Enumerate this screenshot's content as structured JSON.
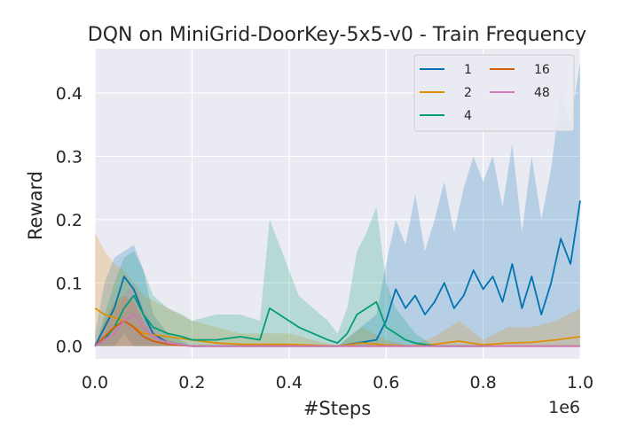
{
  "chart_data": {
    "type": "line",
    "title": "DQN on MiniGrid-DoorKey-5x5-v0 - Train Frequency",
    "xlabel": "#Steps",
    "ylabel": "Reward",
    "x_offset_label": "1e6",
    "xlim": [
      0.0,
      1.0
    ],
    "ylim": [
      -0.02,
      0.47
    ],
    "xticks": [
      0.0,
      0.2,
      0.4,
      0.6,
      0.8,
      1.0
    ],
    "xtick_labels": [
      "0.0",
      "0.2",
      "0.4",
      "0.6",
      "0.8",
      "1.0"
    ],
    "yticks": [
      0.0,
      0.1,
      0.2,
      0.3,
      0.4
    ],
    "ytick_labels": [
      "0.0",
      "0.1",
      "0.2",
      "0.3",
      "0.4"
    ],
    "grid": true,
    "legend_position": "top-right",
    "series": [
      {
        "name": "1",
        "color": "#0173b2",
        "x": [
          0.0,
          0.02,
          0.04,
          0.06,
          0.08,
          0.1,
          0.12,
          0.15,
          0.2,
          0.3,
          0.4,
          0.5,
          0.58,
          0.6,
          0.62,
          0.64,
          0.66,
          0.68,
          0.7,
          0.72,
          0.74,
          0.76,
          0.78,
          0.8,
          0.82,
          0.84,
          0.86,
          0.88,
          0.9,
          0.92,
          0.94,
          0.96,
          0.98,
          1.0
        ],
        "y": [
          0.0,
          0.03,
          0.06,
          0.11,
          0.09,
          0.05,
          0.02,
          0.005,
          0.0,
          0.0,
          0.0,
          0.0,
          0.01,
          0.04,
          0.09,
          0.06,
          0.08,
          0.05,
          0.07,
          0.1,
          0.06,
          0.08,
          0.12,
          0.09,
          0.11,
          0.07,
          0.13,
          0.06,
          0.11,
          0.05,
          0.1,
          0.17,
          0.13,
          0.23
        ],
        "lower": [
          0.0,
          0.0,
          0.0,
          0.02,
          0.0,
          0.0,
          0.0,
          0.0,
          0.0,
          0.0,
          0.0,
          0.0,
          0.0,
          0.0,
          0.0,
          0.0,
          0.0,
          0.0,
          0.0,
          0.0,
          0.0,
          0.0,
          0.0,
          0.0,
          0.0,
          0.0,
          0.0,
          0.0,
          0.0,
          0.0,
          0.0,
          0.0,
          0.0,
          0.0
        ],
        "upper": [
          0.02,
          0.1,
          0.14,
          0.15,
          0.16,
          0.12,
          0.05,
          0.02,
          0.0,
          0.0,
          0.0,
          0.0,
          0.05,
          0.13,
          0.2,
          0.16,
          0.24,
          0.15,
          0.2,
          0.26,
          0.18,
          0.25,
          0.3,
          0.26,
          0.3,
          0.22,
          0.32,
          0.18,
          0.3,
          0.2,
          0.28,
          0.4,
          0.35,
          0.45
        ]
      },
      {
        "name": "2",
        "color": "#de8f05",
        "x": [
          0.0,
          0.02,
          0.04,
          0.06,
          0.08,
          0.1,
          0.15,
          0.2,
          0.25,
          0.3,
          0.4,
          0.5,
          0.55,
          0.6,
          0.65,
          0.7,
          0.75,
          0.8,
          0.85,
          0.9,
          0.95,
          1.0
        ],
        "y": [
          0.06,
          0.05,
          0.045,
          0.04,
          0.03,
          0.02,
          0.015,
          0.01,
          0.005,
          0.003,
          0.003,
          0.0,
          0.005,
          0.002,
          0.0,
          0.003,
          0.008,
          0.002,
          0.005,
          0.006,
          0.01,
          0.015
        ],
        "lower": [
          0.0,
          0.0,
          0.0,
          0.0,
          0.0,
          0.0,
          0.0,
          0.0,
          0.0,
          0.0,
          0.0,
          0.0,
          0.0,
          0.0,
          0.0,
          0.0,
          0.0,
          0.0,
          0.0,
          0.0,
          0.0,
          0.0
        ],
        "upper": [
          0.18,
          0.15,
          0.13,
          0.12,
          0.1,
          0.08,
          0.06,
          0.04,
          0.03,
          0.02,
          0.02,
          0.0,
          0.03,
          0.01,
          0.0,
          0.015,
          0.04,
          0.01,
          0.03,
          0.03,
          0.04,
          0.06
        ]
      },
      {
        "name": "4",
        "color": "#029e73",
        "x": [
          0.0,
          0.02,
          0.04,
          0.06,
          0.08,
          0.1,
          0.12,
          0.15,
          0.18,
          0.2,
          0.25,
          0.3,
          0.34,
          0.36,
          0.38,
          0.4,
          0.42,
          0.45,
          0.48,
          0.5,
          0.52,
          0.54,
          0.56,
          0.58,
          0.6,
          0.62,
          0.64,
          0.66,
          0.7,
          0.75,
          0.8
        ],
        "y": [
          0.0,
          0.01,
          0.03,
          0.06,
          0.08,
          0.05,
          0.03,
          0.02,
          0.015,
          0.01,
          0.01,
          0.015,
          0.01,
          0.06,
          0.05,
          0.04,
          0.03,
          0.02,
          0.01,
          0.005,
          0.02,
          0.05,
          0.06,
          0.07,
          0.03,
          0.02,
          0.01,
          0.005,
          0.0,
          0.0,
          0.0
        ],
        "lower": [
          0.0,
          0.0,
          0.0,
          0.0,
          0.0,
          0.0,
          0.0,
          0.0,
          0.0,
          0.0,
          0.0,
          0.0,
          0.0,
          0.0,
          0.0,
          0.0,
          0.0,
          0.0,
          0.0,
          0.0,
          0.0,
          0.0,
          0.0,
          0.0,
          0.0,
          0.0,
          0.0,
          0.0,
          0.0,
          0.0,
          0.0
        ],
        "upper": [
          0.0,
          0.05,
          0.1,
          0.14,
          0.15,
          0.12,
          0.08,
          0.06,
          0.05,
          0.04,
          0.05,
          0.05,
          0.04,
          0.2,
          0.16,
          0.12,
          0.08,
          0.06,
          0.04,
          0.02,
          0.06,
          0.15,
          0.18,
          0.22,
          0.1,
          0.06,
          0.04,
          0.02,
          0.0,
          0.0,
          0.0
        ]
      },
      {
        "name": "16",
        "color": "#d55e00",
        "x": [
          0.0,
          0.02,
          0.04,
          0.06,
          0.08,
          0.1,
          0.12,
          0.15,
          0.2,
          0.3,
          0.5,
          0.7,
          1.0
        ],
        "y": [
          0.0,
          0.015,
          0.03,
          0.04,
          0.03,
          0.015,
          0.008,
          0.003,
          0.0,
          0.0,
          0.0,
          0.0,
          0.0
        ],
        "lower": [
          0.0,
          0.0,
          0.0,
          0.0,
          0.0,
          0.0,
          0.0,
          0.0,
          0.0,
          0.0,
          0.0,
          0.0,
          0.0
        ],
        "upper": [
          0.0,
          0.04,
          0.07,
          0.08,
          0.07,
          0.04,
          0.02,
          0.01,
          0.0,
          0.0,
          0.0,
          0.0,
          0.0
        ]
      },
      {
        "name": "48",
        "color": "#cc78bc",
        "x": [
          0.0,
          0.02,
          0.04,
          0.06,
          0.08,
          0.1,
          0.12,
          0.15,
          0.2,
          0.3,
          0.5,
          0.7,
          1.0
        ],
        "y": [
          0.0,
          0.01,
          0.02,
          0.04,
          0.05,
          0.03,
          0.015,
          0.005,
          0.0,
          0.0,
          0.0,
          0.0,
          0.0
        ],
        "lower": [
          0.0,
          0.0,
          0.0,
          0.0,
          0.0,
          0.0,
          0.0,
          0.0,
          0.0,
          0.0,
          0.0,
          0.0,
          0.0
        ],
        "upper": [
          0.0,
          0.03,
          0.05,
          0.08,
          0.1,
          0.06,
          0.03,
          0.01,
          0.0,
          0.0,
          0.0,
          0.0,
          0.0
        ]
      }
    ]
  }
}
